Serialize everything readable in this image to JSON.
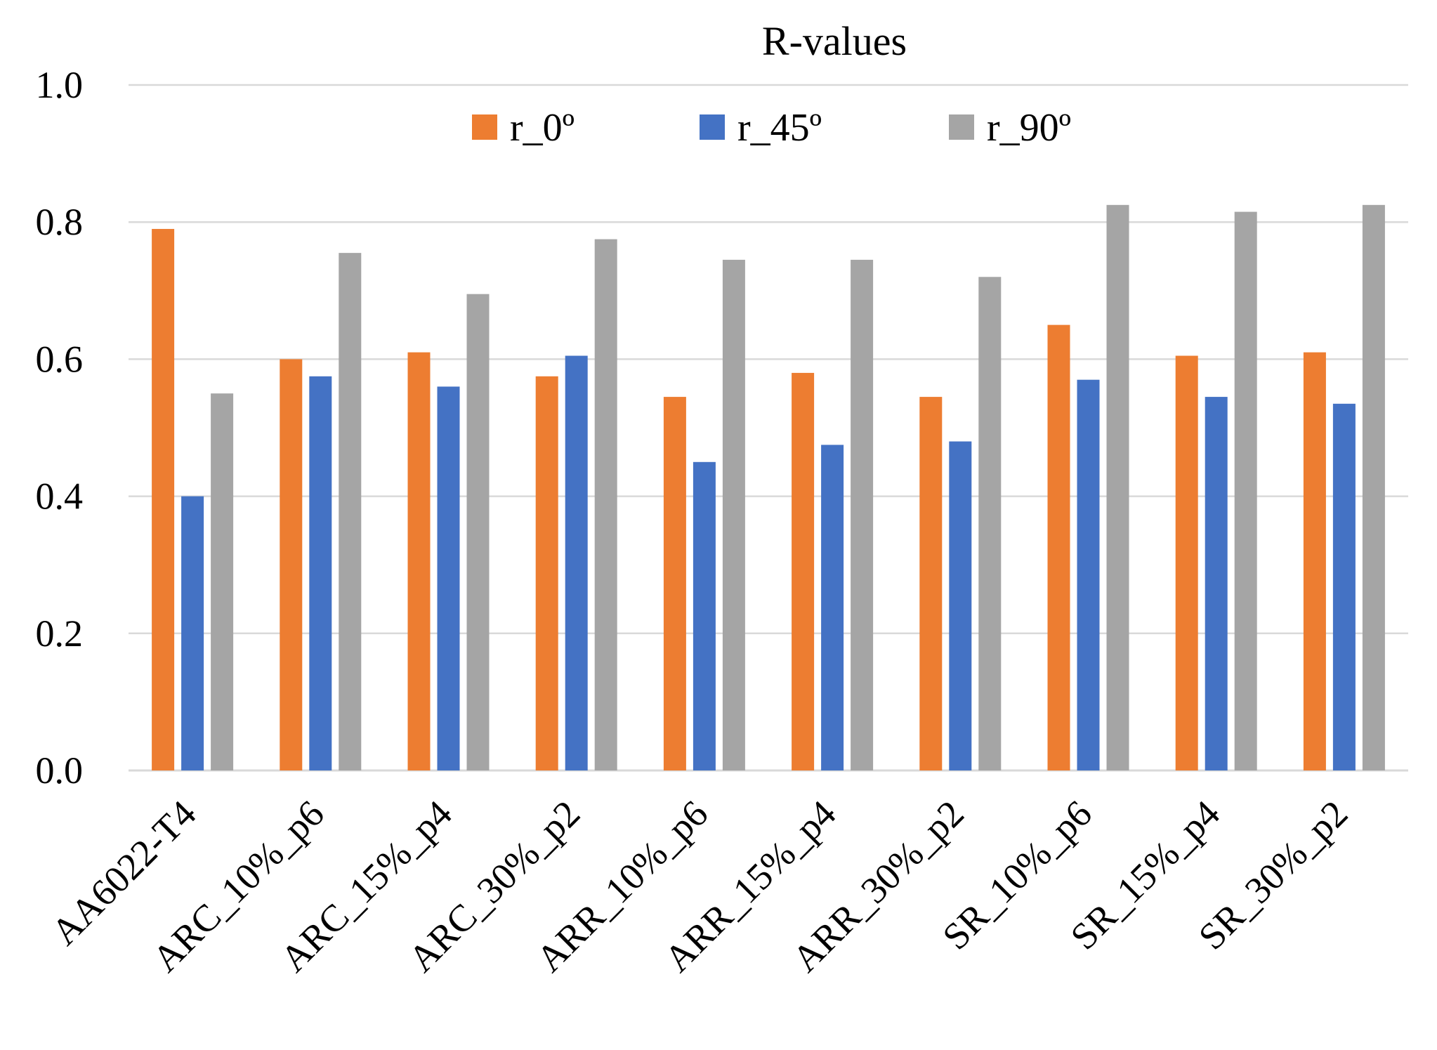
{
  "chart_data": {
    "type": "bar",
    "title": "R-values",
    "xlabel": "",
    "ylabel": "",
    "ylim": [
      0,
      1.0
    ],
    "y_ticks": [
      "0.0",
      "0.2",
      "0.4",
      "0.6",
      "0.8",
      "1.0"
    ],
    "y_tick_values": [
      0,
      0.2,
      0.4,
      0.6,
      0.8,
      1.0
    ],
    "grid": true,
    "legend_position": "top",
    "categories": [
      "AA6022-T4",
      "ARC_10%_p6",
      "ARC_15%_p4",
      "ARC_30%_p2",
      "ARR_10%_p6",
      "ARR_15%_p4",
      "ARR_30%_p2",
      "SR_10%_p6",
      "SR_15%_p4",
      "SR_30%_p2"
    ],
    "series": [
      {
        "name": "r_0º",
        "color": "#ED7D31",
        "values": [
          0.79,
          0.6,
          0.61,
          0.575,
          0.545,
          0.58,
          0.545,
          0.65,
          0.605,
          0.61
        ]
      },
      {
        "name": "r_45º",
        "color": "#4472C4",
        "values": [
          0.4,
          0.575,
          0.56,
          0.605,
          0.45,
          0.475,
          0.48,
          0.57,
          0.545,
          0.535
        ]
      },
      {
        "name": "r_90º",
        "color": "#A5A5A5",
        "values": [
          0.55,
          0.755,
          0.695,
          0.775,
          0.745,
          0.745,
          0.72,
          0.825,
          0.815,
          0.825
        ]
      }
    ]
  }
}
